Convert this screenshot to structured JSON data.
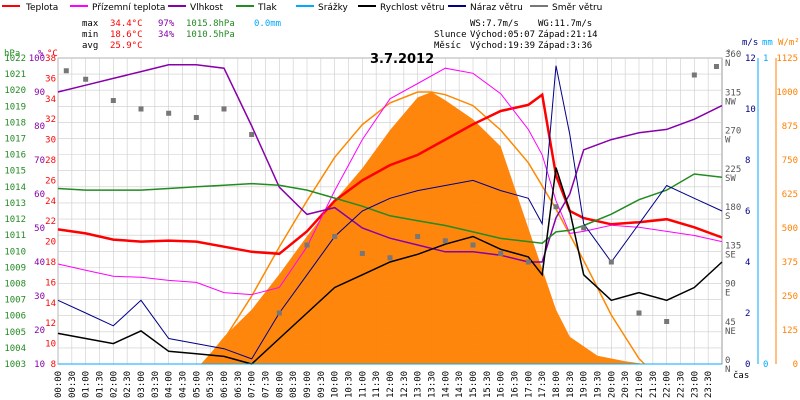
{
  "legend": [
    {
      "label": "Teplota",
      "color": "#ff0000"
    },
    {
      "label": "Přízemní teplota",
      "color": "#ff00ff"
    },
    {
      "label": "Vlhkost",
      "color": "#8800aa"
    },
    {
      "label": "Tlak",
      "color": "#008800"
    },
    {
      "label": "Srážky",
      "color": "#00aaff"
    },
    {
      "label": "Rychlost větru",
      "color": "#000000"
    },
    {
      "label": "Náraz větru",
      "color": "#000088"
    },
    {
      "label": "Směr větru",
      "color": "#777777"
    }
  ],
  "stats": {
    "max_label": "max",
    "max_temp": "34.4°C",
    "max_hum": "97%",
    "max_press": "1015.8hPa",
    "max_rain": "0.0mm",
    "min_label": "min",
    "min_temp": "18.6°C",
    "min_hum": "34%",
    "min_press": "1010.5hPa",
    "avg_label": "avg",
    "avg_temp": "25.9°C"
  },
  "wind_info": {
    "ws": "WS:7.7m/s",
    "wg": "WG:11.7m/s"
  },
  "sun": {
    "label": "Slunce",
    "rise": "Východ:05:07",
    "set": "Západ:21:14"
  },
  "moon": {
    "label": "Měsíc",
    "rise": "Východ:19:39",
    "set": "Západ:3:36"
  },
  "axis_units": {
    "hpa": "hPa",
    "pct": "%",
    "deg": "°C",
    "wind_deg": "°",
    "ms": "m/s",
    "mm": "mm",
    "wm2": "W/m²",
    "time": "čas"
  },
  "colors": {
    "temp": "#ff0000",
    "ground": "#ff00ff",
    "humidity": "#8800aa",
    "pressure": "#228b22",
    "rain": "#00aaff",
    "wind": "#000000",
    "gust": "#000088",
    "direction": "#777777",
    "sun_curve": "#ff8800",
    "solar_fill": "#ff8000",
    "grid": "#cccccc"
  },
  "chart_data": {
    "type": "line",
    "title": "3.7.2012",
    "time_ticks": [
      "00:00",
      "00:30",
      "01:00",
      "01:30",
      "02:00",
      "02:30",
      "03:00",
      "03:30",
      "04:00",
      "04:30",
      "05:00",
      "05:30",
      "06:00",
      "06:30",
      "07:00",
      "07:30",
      "08:00",
      "08:30",
      "09:00",
      "09:30",
      "10:00",
      "10:30",
      "11:00",
      "11:30",
      "12:00",
      "12:30",
      "13:00",
      "13:30",
      "14:00",
      "14:30",
      "15:00",
      "15:30",
      "16:00",
      "16:30",
      "17:00",
      "17:30",
      "18:00",
      "18:30",
      "19:00",
      "19:30",
      "20:00",
      "20:30",
      "21:00",
      "21:30",
      "22:00",
      "22:30",
      "23:00",
      "23:30"
    ],
    "axes": {
      "pressure": {
        "ticks": [
          "1003",
          "1004",
          "1005",
          "1006",
          "1007",
          "1008",
          "1009",
          "1010",
          "1011",
          "1012",
          "1013",
          "1014",
          "1015",
          "1016",
          "1017",
          "1018",
          "1019",
          "1020",
          "1021",
          "1022"
        ],
        "range": [
          1003,
          1022
        ]
      },
      "humidity": {
        "ticks": [
          "10",
          "20",
          "30",
          "40",
          "50",
          "60",
          "70",
          "80",
          "90",
          "100"
        ],
        "range": [
          10,
          100
        ]
      },
      "temperature": {
        "ticks": [
          "8",
          "10",
          "12",
          "14",
          "16",
          "18",
          "20",
          "22",
          "24",
          "26",
          "28",
          "30",
          "32",
          "34",
          "36",
          "38"
        ],
        "range": [
          8,
          38
        ]
      },
      "direction": {
        "ticks": [
          "0",
          "45",
          "90",
          "135",
          "180",
          "225",
          "270",
          "315",
          "360"
        ],
        "labels": [
          "N",
          "NE",
          "E",
          "SE",
          "S",
          "SW",
          "W",
          "NW",
          "N"
        ],
        "range": [
          0,
          360
        ]
      },
      "wind": {
        "ticks": [
          "0",
          "2",
          "4",
          "6",
          "8",
          "10",
          "12"
        ],
        "range": [
          0,
          12
        ]
      },
      "rain": {
        "ticks": [
          "0",
          "1"
        ],
        "range": [
          0,
          1
        ]
      },
      "solar": {
        "ticks": [
          "0",
          "125",
          "250",
          "375",
          "500",
          "625",
          "750",
          "875",
          "1000",
          "1125"
        ],
        "range": [
          0,
          1125
        ]
      }
    },
    "series": [
      {
        "name": "Teplota",
        "axis": "temperature",
        "x": [
          0,
          1,
          2,
          3,
          4,
          5,
          6,
          7,
          8,
          9,
          10,
          11,
          12,
          13,
          14,
          15,
          16,
          17,
          17.5,
          18,
          18.5,
          19,
          20,
          21,
          22,
          23,
          24
        ],
        "values": [
          21.2,
          20.8,
          20.2,
          20.0,
          20.1,
          20.0,
          19.5,
          19.0,
          18.8,
          21.0,
          24.0,
          26.0,
          27.5,
          28.5,
          30.0,
          31.5,
          32.8,
          33.4,
          34.4,
          26.5,
          23.0,
          22.3,
          21.7,
          21.9,
          22.2,
          21.4,
          20.4
        ]
      },
      {
        "name": "Přízemní teplota",
        "axis": "temperature",
        "x": [
          0,
          1,
          2,
          3,
          4,
          5,
          6,
          7,
          8,
          9,
          10,
          11,
          12,
          13,
          14,
          15,
          16,
          17,
          17.5,
          18,
          18.5,
          19,
          20,
          21,
          22,
          23,
          24
        ],
        "values": [
          17.8,
          17.2,
          16.6,
          16.5,
          16.2,
          16.0,
          15.0,
          14.8,
          15.5,
          19.5,
          25.0,
          30.0,
          34.0,
          35.5,
          37.0,
          36.5,
          34.5,
          31.0,
          28.5,
          24.0,
          20.8,
          21.0,
          21.6,
          21.4,
          21.0,
          20.6,
          20.0
        ]
      },
      {
        "name": "Vlhkost",
        "axis": "humidity",
        "x": [
          0,
          1,
          2,
          3,
          4,
          5,
          6,
          7,
          8,
          9,
          10,
          11,
          12,
          13,
          14,
          15,
          16,
          17,
          17.5,
          18,
          18.5,
          19,
          20,
          21,
          22,
          23,
          24
        ],
        "values": [
          90,
          92,
          94,
          96,
          98,
          98,
          97,
          80,
          62,
          54,
          56,
          50,
          47,
          45,
          43,
          43,
          42,
          40,
          40,
          53,
          60,
          73,
          76,
          78,
          79,
          82,
          86
        ]
      },
      {
        "name": "Tlak",
        "axis": "pressure",
        "x": [
          0,
          1,
          2,
          3,
          4,
          5,
          6,
          7,
          8,
          9,
          10,
          11,
          12,
          13,
          14,
          15,
          16,
          17,
          17.5,
          18,
          18.5,
          19,
          20,
          21,
          22,
          23,
          24
        ],
        "values": [
          1013.9,
          1013.8,
          1013.8,
          1013.8,
          1013.9,
          1014.0,
          1014.1,
          1014.2,
          1014.1,
          1013.8,
          1013.3,
          1012.8,
          1012.2,
          1011.9,
          1011.6,
          1011.2,
          1010.8,
          1010.6,
          1010.5,
          1011.2,
          1011.3,
          1011.6,
          1012.3,
          1013.2,
          1013.8,
          1014.8,
          1014.6
        ]
      },
      {
        "name": "Rychlost větru",
        "axis": "wind",
        "x": [
          0,
          1,
          2,
          3,
          4,
          5,
          6,
          7,
          8,
          9,
          10,
          11,
          12,
          13,
          14,
          15,
          16,
          17,
          17.5,
          18,
          18.5,
          19,
          20,
          21,
          22,
          23,
          24
        ],
        "values": [
          1.2,
          1.0,
          0.8,
          1.3,
          0.5,
          0.4,
          0.3,
          0.0,
          1.0,
          2.0,
          3.0,
          3.5,
          4.0,
          4.3,
          4.7,
          5.0,
          4.5,
          4.2,
          3.5,
          7.7,
          6.0,
          3.5,
          2.5,
          2.8,
          2.5,
          3.0,
          4.0
        ]
      },
      {
        "name": "Náraz větru",
        "axis": "wind",
        "x": [
          0,
          1,
          2,
          3,
          4,
          5,
          6,
          7,
          8,
          9,
          10,
          11,
          12,
          13,
          14,
          15,
          16,
          17,
          17.5,
          18,
          18.5,
          19,
          20,
          21,
          22,
          23,
          24
        ],
        "values": [
          2.5,
          2.0,
          1.5,
          2.5,
          1.0,
          0.8,
          0.6,
          0.2,
          2.0,
          3.5,
          5.0,
          6.0,
          6.5,
          6.8,
          7.0,
          7.2,
          6.8,
          6.5,
          5.5,
          11.7,
          9.0,
          5.5,
          4.0,
          5.5,
          7.0,
          6.5,
          6.0
        ]
      },
      {
        "name": "Směr větru",
        "axis": "direction",
        "x": [
          0.3,
          1,
          2,
          3,
          4,
          5,
          6,
          7,
          8,
          9,
          10,
          11,
          12,
          13,
          14,
          15,
          16,
          17,
          18,
          19,
          20,
          21,
          22,
          23,
          23.8
        ],
        "values": [
          345,
          335,
          310,
          300,
          295,
          290,
          300,
          270,
          60,
          140,
          150,
          130,
          125,
          150,
          145,
          140,
          130,
          120,
          185,
          160,
          120,
          60,
          50,
          340,
          350
        ]
      },
      {
        "name": "Srážky",
        "axis": "rain",
        "x": [
          0,
          24
        ],
        "values": [
          0,
          0
        ]
      }
    ],
    "solar_radiation": {
      "axis": "solar",
      "x": [
        5.2,
        6,
        7,
        8,
        9,
        10,
        11,
        12,
        13,
        13.5,
        14,
        15,
        16,
        17,
        18,
        18.5,
        19.5,
        20.5,
        21.2
      ],
      "values": [
        0,
        100,
        200,
        330,
        470,
        600,
        720,
        860,
        980,
        1000,
        970,
        900,
        800,
        500,
        200,
        100,
        30,
        10,
        0
      ]
    },
    "sun_curve": {
      "axis": "solar",
      "x": [
        5.2,
        6,
        7,
        8,
        9,
        10,
        11,
        12,
        13,
        13.5,
        14,
        15,
        16,
        17,
        18,
        19,
        20,
        21,
        21.2
      ],
      "values": [
        0,
        90,
        250,
        430,
        600,
        760,
        880,
        960,
        1000,
        1000,
        990,
        950,
        860,
        740,
        570,
        380,
        180,
        20,
        0
      ]
    }
  }
}
